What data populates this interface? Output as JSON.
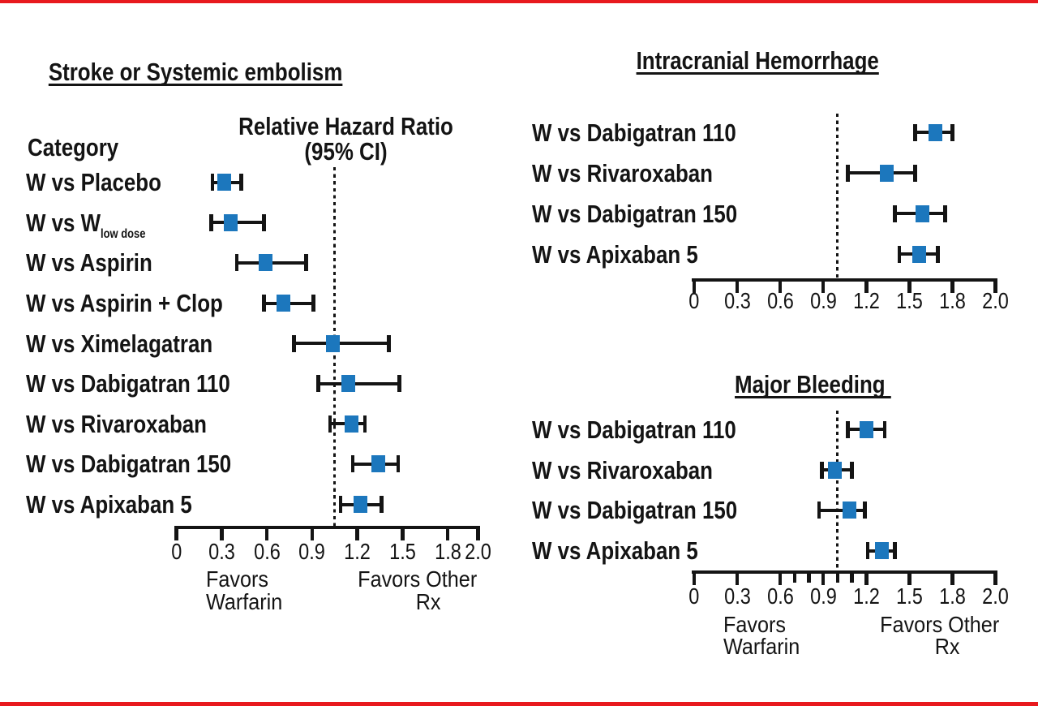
{
  "figure": {
    "background": "#ffffff",
    "border_bar_color": "#e8191e",
    "ink_color": "#141414",
    "marker_color": "#1c77bd"
  },
  "chart_data": [
    {
      "type": "scatter",
      "subtype": "forest-plot",
      "title": "Stroke or Systemic embolism",
      "category_header": "Category",
      "value_header_lines": [
        "Relative Hazard Ratio",
        "(95% CI)"
      ],
      "xlim": [
        0,
        2.0
      ],
      "x_tick_labels": [
        "0",
        "0.3",
        "0.6",
        "0.9",
        "1.2",
        "1.5",
        "1.8",
        "2.0"
      ],
      "x_tick_values": [
        0,
        0.3,
        0.6,
        0.9,
        1.2,
        1.5,
        1.8,
        2.0
      ],
      "tick_layout": "linear",
      "ref_line": 1.05,
      "grid": false,
      "annotations": {
        "left_lines": [
          "Favors",
          "Warfarin"
        ],
        "right_lines": [
          "Favors Other",
          "Rx"
        ]
      },
      "series": [
        {
          "name": "Relative Hazard Ratio (95% CI)",
          "points": [
            {
              "category": "W vs Placebo",
              "value": 0.32,
              "lo": 0.24,
              "hi": 0.43
            },
            {
              "category": "W vs W",
              "category_sub": "low dose",
              "value": 0.36,
              "lo": 0.23,
              "hi": 0.58
            },
            {
              "category": "W vs Aspirin",
              "value": 0.59,
              "lo": 0.4,
              "hi": 0.86
            },
            {
              "category": "W vs Aspirin + Clop",
              "value": 0.71,
              "lo": 0.58,
              "hi": 0.91
            },
            {
              "category": "W vs Ximelagatran",
              "value": 1.04,
              "lo": 0.78,
              "hi": 1.41
            },
            {
              "category": "W vs Dabigatran 110",
              "value": 1.14,
              "lo": 0.94,
              "hi": 1.48
            },
            {
              "category": "W vs Rivaroxaban",
              "value": 1.16,
              "lo": 1.02,
              "hi": 1.25
            },
            {
              "category": "W vs Dabigatran 150",
              "value": 1.34,
              "lo": 1.17,
              "hi": 1.47
            },
            {
              "category": "W vs Apixaban 5",
              "value": 1.22,
              "lo": 1.09,
              "hi": 1.36
            }
          ]
        }
      ]
    },
    {
      "type": "scatter",
      "subtype": "forest-plot",
      "title": "Intracranial Hemorrhage",
      "xlim": [
        0,
        2.0
      ],
      "x_tick_labels": [
        "0",
        "0.3",
        "0.6",
        "0.9",
        "1.2",
        "1.5",
        "1.8",
        "2.0"
      ],
      "x_tick_values": [
        0,
        0.3,
        0.6,
        0.9,
        1.2,
        1.5,
        1.8,
        2.0
      ],
      "tick_layout": "even",
      "ref_line": 1.0,
      "grid": false,
      "series": [
        {
          "name": "Relative Hazard Ratio (95% CI)",
          "points": [
            {
              "category": "W vs Dabigatran 110",
              "value": 1.68,
              "lo": 1.54,
              "hi": 1.8
            },
            {
              "category": "W vs Rivaroxaban",
              "value": 1.34,
              "lo": 1.07,
              "hi": 1.54
            },
            {
              "category": "W vs Dabigatran 150",
              "value": 1.59,
              "lo": 1.4,
              "hi": 1.75
            },
            {
              "category": "W vs Apixaban 5",
              "value": 1.57,
              "lo": 1.43,
              "hi": 1.7
            }
          ]
        }
      ]
    },
    {
      "type": "scatter",
      "subtype": "forest-plot",
      "title": "Major Bleeding",
      "xlim": [
        0,
        2.0
      ],
      "x_tick_labels": [
        "0",
        "0.3",
        "0.6",
        "0.9",
        "1.2",
        "1.5",
        "1.8",
        "2.0"
      ],
      "x_tick_values": [
        0,
        0.3,
        0.6,
        0.9,
        1.2,
        1.5,
        1.8,
        2.0
      ],
      "minor_tick_values": [
        0.7,
        0.8,
        1.0,
        1.1
      ],
      "tick_layout": "even",
      "ref_line": 1.0,
      "grid": false,
      "annotations": {
        "left_lines": [
          "Favors",
          "Warfarin"
        ],
        "right_lines": [
          "Favors Other",
          "Rx"
        ]
      },
      "series": [
        {
          "name": "Relative Hazard Ratio (95% CI)",
          "points": [
            {
              "category": "W vs Dabigatran 110",
              "value": 1.2,
              "lo": 1.07,
              "hi": 1.33
            },
            {
              "category": "W vs Rivaroxaban",
              "value": 0.98,
              "lo": 0.89,
              "hi": 1.1
            },
            {
              "category": "W vs Dabigatran 150",
              "value": 1.08,
              "lo": 0.87,
              "hi": 1.19
            },
            {
              "category": "W vs Apixaban 5",
              "value": 1.31,
              "lo": 1.21,
              "hi": 1.4
            }
          ]
        }
      ]
    }
  ]
}
